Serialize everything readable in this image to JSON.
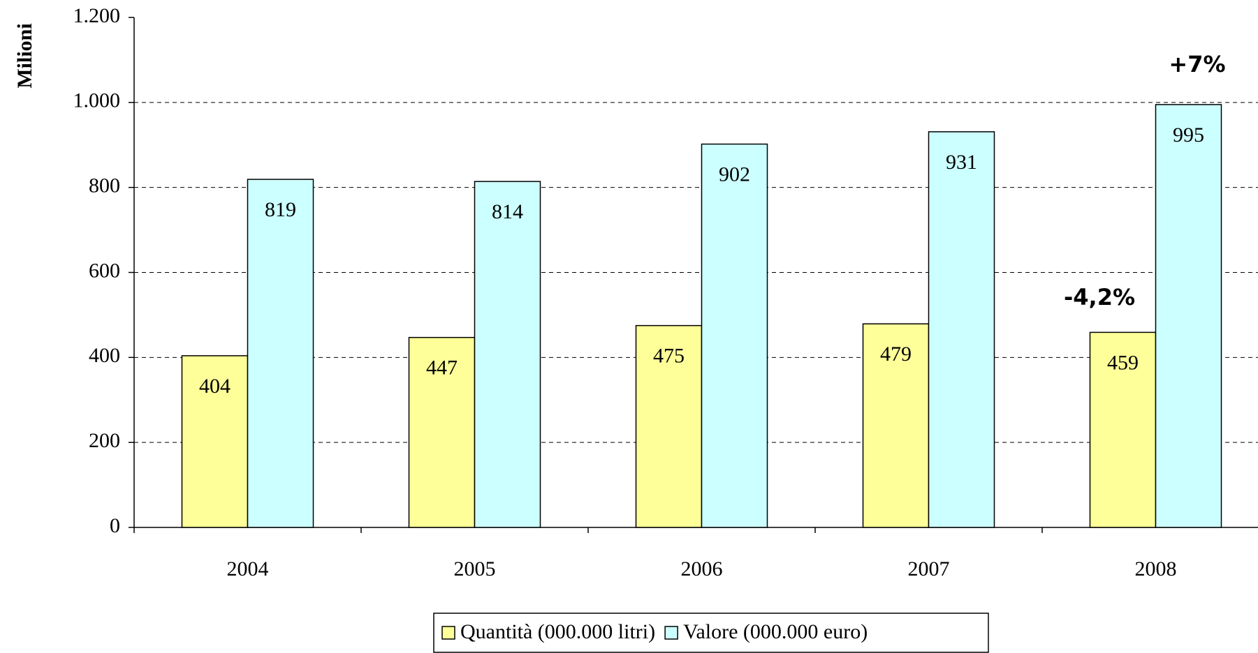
{
  "chart_data": {
    "type": "bar",
    "y_label": "Milioni",
    "categories": [
      "2004",
      "2005",
      "2006",
      "2007",
      "2008"
    ],
    "series": [
      {
        "name": "Quantità (000.000 litri)",
        "color": "#ffff99",
        "values": [
          404,
          447,
          475,
          479,
          459
        ]
      },
      {
        "name": "Valore (000.000 euro)",
        "color": "#ccffff",
        "values": [
          819,
          814,
          902,
          931,
          995
        ]
      }
    ],
    "ylim": [
      0,
      1200
    ],
    "yticks": [
      0,
      200,
      400,
      600,
      800,
      {
        "value": 1000,
        "label": "1.000"
      },
      {
        "value": 1200,
        "label": "1.200"
      }
    ],
    "grid": true,
    "annotations": [
      "+7%",
      "-4,2%"
    ]
  }
}
